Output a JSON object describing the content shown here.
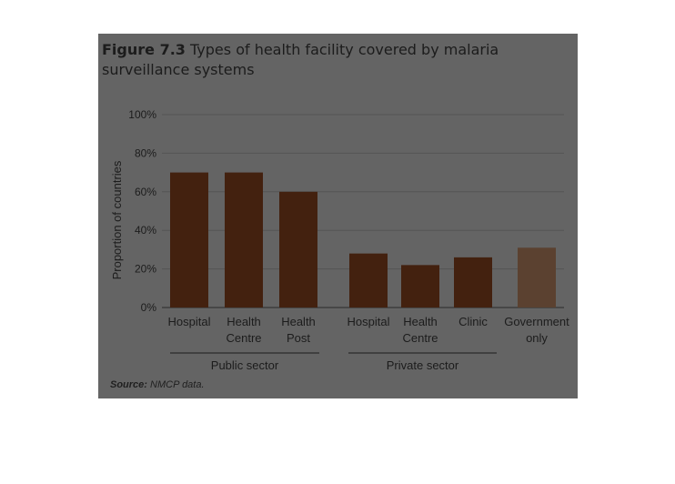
{
  "figure": {
    "number": "Figure 7.3",
    "title": "Types of health facility covered by malaria surveillance systems"
  },
  "source": {
    "key": "Source:",
    "text": "NMCP data."
  },
  "chart_data": {
    "type": "bar",
    "ylabel": "Proportion of countries",
    "ylim": [
      0,
      100
    ],
    "yticks": [
      "0%",
      "20%",
      "40%",
      "60%",
      "80%",
      "100%"
    ],
    "grid": true,
    "categories": [
      {
        "label": [
          "Hospital"
        ],
        "group": "Public sector",
        "value": 70
      },
      {
        "label": [
          "Health",
          "Centre"
        ],
        "group": "Public sector",
        "value": 70
      },
      {
        "label": [
          "Health",
          "Post"
        ],
        "group": "Public sector",
        "value": 60
      },
      {
        "label": [
          "Hospital"
        ],
        "group": "Private sector",
        "value": 28
      },
      {
        "label": [
          "Health",
          "Centre"
        ],
        "group": "Private sector",
        "value": 22
      },
      {
        "label": [
          "Clinic"
        ],
        "group": "Private sector",
        "value": 26
      },
      {
        "label": [
          "Government",
          "only"
        ],
        "group": "",
        "value": 31
      }
    ],
    "groups": [
      "Public sector",
      "Private sector"
    ],
    "colors": {
      "bar": "#43210f",
      "bar_government": "#5b4130",
      "grid": "#555555",
      "axis": "#2a2a2a"
    }
  }
}
